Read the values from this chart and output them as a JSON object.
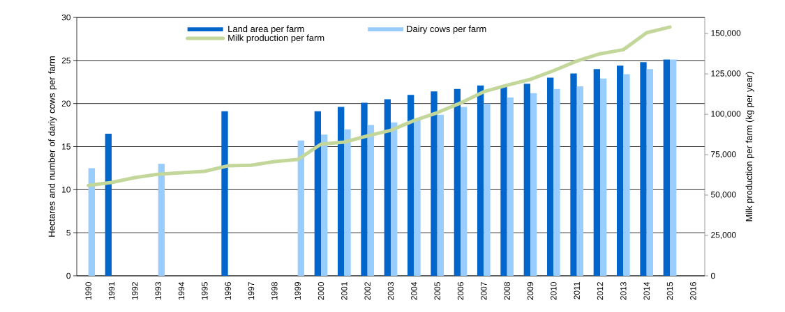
{
  "chart_data": {
    "type": "bar",
    "categories": [
      "1990",
      "1991",
      "1992",
      "1993",
      "1994",
      "1995",
      "1996",
      "1997",
      "1998",
      "1999",
      "2000",
      "2001",
      "2002",
      "2003",
      "2004",
      "2005",
      "2006",
      "2007",
      "2008",
      "2009",
      "2010",
      "2011",
      "2012",
      "2013",
      "2014",
      "2015",
      "2016"
    ],
    "series": [
      {
        "name": "Land area per farm",
        "color": "#0066cc",
        "values": [
          null,
          16.5,
          null,
          null,
          null,
          null,
          19.1,
          null,
          null,
          null,
          19.1,
          19.6,
          20.1,
          20.5,
          21.0,
          21.4,
          21.7,
          22.1,
          22.0,
          22.3,
          23.0,
          23.5,
          24.0,
          24.4,
          24.8,
          25.1,
          null
        ]
      },
      {
        "name": "Dairy cows per farm",
        "color": "#99ccff",
        "values": [
          12.5,
          null,
          null,
          13.0,
          null,
          null,
          null,
          null,
          null,
          15.7,
          16.4,
          17.0,
          17.5,
          17.8,
          18.2,
          18.7,
          19.6,
          20.0,
          20.7,
          21.2,
          21.7,
          22.0,
          22.9,
          23.4,
          24.0,
          25.1,
          null
        ]
      },
      {
        "name": "Milk production per farm",
        "type": "line",
        "axis": "y2",
        "color": "#c4d79b",
        "values": [
          56000,
          57800,
          60800,
          62900,
          63800,
          64700,
          68100,
          68500,
          70700,
          72000,
          81500,
          82800,
          86600,
          90100,
          96100,
          101000,
          107000,
          114000,
          118000,
          121600,
          127000,
          133000,
          137500,
          140000,
          150500,
          154000,
          null
        ]
      }
    ],
    "ylabel": "Hectares and number of dariy cows per farm",
    "y2label": "Milk production per farm (kg per year)",
    "ylim": [
      0,
      30
    ],
    "yticks": [
      0,
      5,
      10,
      15,
      20,
      25,
      30
    ],
    "y2lim": [
      0,
      160000
    ],
    "y2ticks": [
      {
        "value": 0,
        "label": "0"
      },
      {
        "value": 25000,
        "label": "25,000"
      },
      {
        "value": 50000,
        "label": "50,000"
      },
      {
        "value": 75000,
        "label": "75,000"
      },
      {
        "value": 100000,
        "label": "100,000"
      },
      {
        "value": 125000,
        "label": "125,000"
      },
      {
        "value": 150000,
        "label": "150,000"
      }
    ],
    "grid": "y",
    "legend": "top left"
  }
}
